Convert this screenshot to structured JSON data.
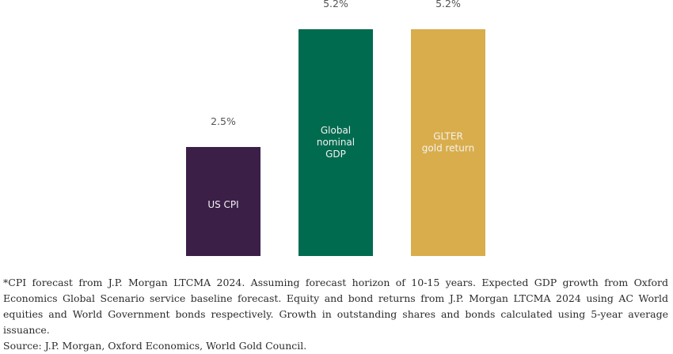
{
  "chart_data": {
    "type": "bar",
    "categories": [
      "US CPI",
      "Global nominal GDP",
      "GLTER gold return"
    ],
    "bar_labels": [
      [
        "US CPI"
      ],
      [
        "Global",
        "nominal",
        "GDP"
      ],
      [
        "GLTER",
        "gold return"
      ]
    ],
    "values": [
      2.5,
      5.2,
      5.2
    ],
    "value_labels": [
      "2.5%",
      "5.2%",
      "5.2%"
    ],
    "colors": [
      "#3b1f47",
      "#006b4f",
      "#d9ad4b"
    ],
    "ylim": [
      0,
      5.2
    ],
    "grid": false,
    "legend": "none"
  },
  "footnote": {
    "note": "*CPI forecast from J.P. Morgan LTCMA 2024. Assuming forecast horizon of 10-15 years. Expected GDP growth from Oxford Economics Global Scenario service baseline forecast. Equity and bond returns from J.P. Morgan LTCMA 2024 using AC World equities and World Government bonds respectively. Growth in outstanding shares and bonds calculated using 5-year average issuance.",
    "source": "Source: J.P. Morgan, Oxford Economics, World Gold Council."
  }
}
